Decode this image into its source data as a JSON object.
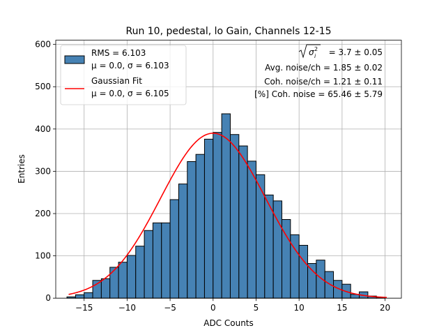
{
  "chart_data": {
    "type": "bar",
    "title": "Run 10, pedestal, lo Gain, Channels 12-15",
    "xlabel": "ADC Counts",
    "ylabel": "Entries",
    "xlim": [
      -18.3,
      21.9
    ],
    "ylim": [
      0,
      610
    ],
    "grid": true,
    "legend_position": "upper-left",
    "bar_color": "#4682b4",
    "fit_color": "#ff0000",
    "bin_width": 1,
    "bin_left_edges": [
      -17,
      -16,
      -15,
      -14,
      -13,
      -12,
      -11,
      -10,
      -9,
      -8,
      -7,
      -6,
      -5,
      -4,
      -3,
      -2,
      -1,
      0,
      1,
      2,
      3,
      4,
      5,
      6,
      7,
      8,
      9,
      10,
      11,
      12,
      13,
      14,
      15,
      16,
      17,
      18,
      19
    ],
    "values": [
      3,
      8,
      13,
      42,
      46,
      73,
      85,
      101,
      123,
      160,
      178,
      178,
      233,
      270,
      323,
      340,
      376,
      392,
      436,
      387,
      360,
      324,
      292,
      244,
      230,
      186,
      150,
      125,
      82,
      90,
      63,
      42,
      33,
      9,
      15,
      5,
      2
    ],
    "x_ticks": [
      -15,
      -10,
      -5,
      0,
      5,
      10,
      15,
      20
    ],
    "x_tick_labels": [
      "−15",
      "−10",
      "−5",
      "0",
      "5",
      "10",
      "15",
      "20"
    ],
    "y_ticks": [
      0,
      100,
      200,
      300,
      400,
      500,
      600
    ],
    "y_tick_labels": [
      "0",
      "100",
      "200",
      "300",
      "400",
      "500",
      "600"
    ],
    "fit": {
      "amplitude": 390,
      "mu": 0.0,
      "sigma": 6.105,
      "x_range": [
        -16.8,
        20.2
      ]
    },
    "legend": {
      "hist_line1": "RMS = 6.103",
      "hist_line2": "μ = 0.0, σ = 6.103",
      "fit_line1": "Gaussian Fit",
      "fit_line2": "μ = 0.0, σ = 6.105"
    },
    "annotations": {
      "sigma_value": " = 3.7 ± 0.05",
      "avg_noise": "Avg. noise/ch = 1.85 ± 0.02",
      "coh_noise": "Coh. noise/ch = 1.21 ± 0.11",
      "coh_percent": "[%] Coh. noise = 65.46 ± 5.79"
    }
  }
}
